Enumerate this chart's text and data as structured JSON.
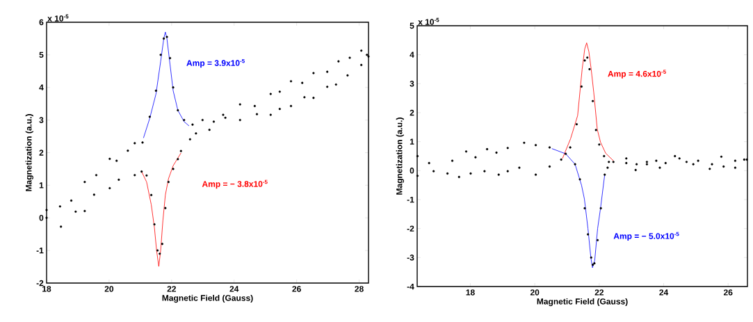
{
  "chart_data": [
    {
      "type": "scatter",
      "xlabel": "Magnetic Field (Gauss)",
      "ylabel": "Magnetization (a.u.)",
      "xlim": [
        18,
        28.3
      ],
      "xticks": [
        18,
        20,
        22,
        24,
        26,
        28
      ],
      "ylim": [
        -2,
        6
      ],
      "yticks": [
        -2,
        -1,
        0,
        1,
        2,
        3,
        4,
        5,
        6
      ],
      "annotations": [
        "x 10$^{-5}$",
        "Amp = 3.9x10$^{-5}$",
        "Amp = − 3.8x10$^{-5}$"
      ],
      "series": [
        {
          "marker": "circle",
          "color": "#000000",
          "x": [
            18.0,
            18.43,
            18.79,
            19.22,
            19.59,
            20.02,
            20.24,
            20.6,
            20.82,
            21.07,
            21.3,
            21.5,
            21.65,
            21.75,
            21.85,
            21.95,
            22.05,
            22.2,
            22.4,
            22.67,
            22.99,
            23.35,
            23.72,
            24.19,
            24.73,
            25.17,
            25.46,
            25.82,
            26.25,
            26.54,
            26.98,
            27.26,
            27.63,
            28.07,
            28.3
          ],
          "values": [
            0.24,
            0.35,
            0.53,
            1.1,
            1.31,
            1.81,
            1.75,
            2.06,
            2.29,
            2.31,
            3.1,
            3.9,
            5.0,
            5.5,
            5.55,
            4.9,
            4.0,
            3.3,
            3.0,
            2.86,
            3.0,
            2.95,
            3.07,
            3.0,
            3.18,
            3.16,
            3.34,
            3.43,
            3.7,
            3.68,
            4.02,
            4.09,
            4.37,
            4.69,
            4.95
          ]
        },
        {
          "marker": "circle",
          "color": "#000000",
          "x": [
            18.0,
            18.46,
            18.93,
            19.22,
            19.52,
            20.02,
            20.31,
            20.82,
            21.04,
            21.2,
            21.35,
            21.45,
            21.55,
            21.62,
            21.7,
            21.8,
            21.9,
            22.05,
            22.2,
            22.3,
            22.59,
            22.78,
            23.21,
            23.65,
            24.19,
            24.66,
            25.17,
            25.46,
            25.82,
            26.18,
            26.54,
            26.98,
            27.34,
            27.7,
            28.07,
            28.25
          ],
          "values": [
            0.0,
            -0.27,
            0.19,
            0.21,
            0.71,
            0.91,
            1.17,
            1.31,
            1.42,
            1.3,
            0.7,
            -0.2,
            -1.0,
            -1.1,
            -0.8,
            0.3,
            1.1,
            1.5,
            1.8,
            2.05,
            2.41,
            2.59,
            2.7,
            3.16,
            3.48,
            3.43,
            3.8,
            3.87,
            4.19,
            4.14,
            4.44,
            4.48,
            4.8,
            4.91,
            5.13,
            5.0
          ]
        },
        {
          "type": "line",
          "color": "#0000ff",
          "x": [
            21.1,
            21.3,
            21.5,
            21.65,
            21.75,
            21.8,
            21.85,
            21.95,
            22.05,
            22.2,
            22.4,
            22.56
          ],
          "values": [
            2.45,
            3.05,
            3.8,
            4.8,
            5.5,
            5.7,
            5.5,
            4.7,
            3.9,
            3.3,
            2.95,
            2.82
          ]
        },
        {
          "type": "line",
          "color": "#ff0000",
          "x": [
            21.04,
            21.2,
            21.35,
            21.45,
            21.52,
            21.59,
            21.65,
            21.72,
            21.8,
            21.9,
            22.05,
            22.3
          ],
          "values": [
            1.42,
            1.1,
            0.4,
            -0.3,
            -1.0,
            -1.49,
            -1.0,
            -0.1,
            0.7,
            1.2,
            1.6,
            1.99
          ]
        }
      ]
    },
    {
      "type": "scatter",
      "xlabel": "Magnetic Field (Gauss)",
      "ylabel": "Magnetization (a.u.)",
      "xlim": [
        16.35,
        26.6
      ],
      "xticks": [
        18,
        20,
        22,
        24,
        26
      ],
      "ylim": [
        -4,
        5
      ],
      "yticks": [
        -4,
        -3,
        -2,
        -1,
        0,
        1,
        2,
        3,
        4,
        5
      ],
      "annotations": [
        "x 10$^{-5}$",
        "Amp = 4.6x10$^{-5}$",
        "Amp = − 5.0x10$^{-5}$"
      ],
      "series": [
        {
          "marker": "circle",
          "color": "#000000",
          "x": [
            16.36,
            16.72,
            17.44,
            17.87,
            18.16,
            18.52,
            18.81,
            19.16,
            19.67,
            20.03,
            20.46,
            20.96,
            21.25,
            21.4,
            21.55,
            21.65,
            21.75,
            21.8,
            21.85,
            21.95,
            22.05,
            22.17,
            22.26,
            22.44,
            22.84,
            23.16,
            23.48,
            23.88,
            24.35,
            24.71,
            25.07,
            25.5,
            25.79,
            26.22,
            26.58
          ],
          "values": [
            0.5,
            0.26,
            0.34,
            0.66,
            0.46,
            0.74,
            0.62,
            0.78,
            0.96,
            0.88,
            0.8,
            0.58,
            0.22,
            -0.3,
            -1.3,
            -2.2,
            -3.0,
            -3.25,
            -3.2,
            -2.4,
            -1.3,
            -0.14,
            0.1,
            0.3,
            0.42,
            0.22,
            0.3,
            0.1,
            0.5,
            0.3,
            0.34,
            0.22,
            0.48,
            0.34,
            0.38
          ]
        },
        {
          "marker": "circle",
          "color": "#000000",
          "x": [
            16.36,
            16.86,
            17.29,
            17.65,
            18.01,
            18.44,
            18.88,
            19.16,
            19.52,
            20.03,
            20.46,
            20.82,
            21.1,
            21.3,
            21.45,
            21.55,
            21.63,
            21.7,
            21.8,
            21.9,
            22.0,
            22.15,
            22.3,
            22.84,
            23.13,
            23.48,
            23.77,
            24.06,
            24.49,
            24.92,
            25.43,
            25.86,
            26.22,
            26.5
          ],
          "values": [
            -0.18,
            -0.02,
            -0.1,
            -0.22,
            -0.1,
            -0.02,
            -0.14,
            -0.02,
            0.1,
            -0.14,
            0.14,
            0.38,
            0.8,
            1.6,
            2.9,
            3.8,
            3.9,
            3.5,
            2.4,
            1.4,
            0.9,
            0.5,
            0.3,
            0.26,
            0.02,
            0.22,
            0.34,
            0.26,
            0.42,
            0.22,
            0.06,
            0.14,
            0.1,
            0.38
          ]
        },
        {
          "type": "line",
          "color": "#ff0000",
          "x": [
            20.86,
            21.11,
            21.33,
            21.47,
            21.55,
            21.61,
            21.68,
            21.75,
            21.83,
            21.94,
            22.04,
            22.2,
            22.44
          ],
          "values": [
            0.42,
            1.1,
            1.9,
            3.5,
            4.2,
            4.41,
            4.1,
            3.5,
            2.7,
            1.42,
            0.98,
            0.6,
            0.34
          ]
        },
        {
          "type": "line",
          "color": "#0000ff",
          "x": [
            20.53,
            20.96,
            21.25,
            21.45,
            21.54,
            21.65,
            21.74,
            21.79,
            21.86,
            21.95,
            22.04,
            22.17
          ],
          "values": [
            0.76,
            0.58,
            0.22,
            -0.5,
            -0.98,
            -2.0,
            -3.0,
            -3.35,
            -3.1,
            -2.0,
            -1.3,
            -0.14
          ]
        }
      ]
    }
  ]
}
